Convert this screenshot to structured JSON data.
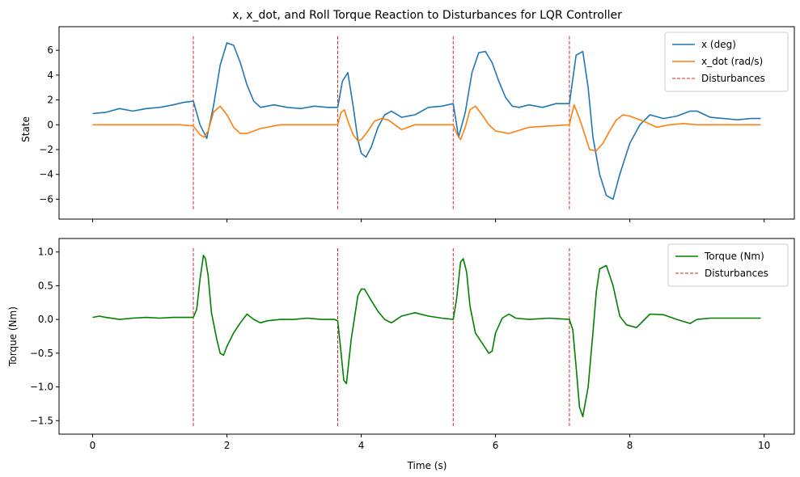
{
  "chart_data": [
    {
      "type": "line",
      "title": "x, x_dot, and Roll Torque Reaction to Disturbances for LQR Controller",
      "xlabel": "",
      "ylabel": "State",
      "xlim": [
        -0.5,
        10.45
      ],
      "ylim": [
        -7.6,
        7.9
      ],
      "xticks": [
        0,
        2,
        4,
        6,
        8,
        10
      ],
      "yticks": [
        -6,
        -4,
        -2,
        0,
        2,
        4,
        6
      ],
      "grid": false,
      "legend": "top-right",
      "disturbances": {
        "name": "Disturbances",
        "color": "#d62728",
        "x": [
          1.5,
          3.65,
          5.37,
          7.1
        ],
        "y_range": [
          -6.8,
          7.2
        ]
      },
      "series": [
        {
          "name": "x (deg)",
          "color": "#1f77b4",
          "x": [
            0,
            0.2,
            0.4,
            0.6,
            0.8,
            1.0,
            1.2,
            1.35,
            1.5,
            1.6,
            1.7,
            1.8,
            1.9,
            2.0,
            2.1,
            2.2,
            2.3,
            2.4,
            2.5,
            2.7,
            2.9,
            3.1,
            3.3,
            3.5,
            3.65,
            3.72,
            3.8,
            3.88,
            3.95,
            4.0,
            4.07,
            4.15,
            4.25,
            4.35,
            4.45,
            4.6,
            4.8,
            5.0,
            5.2,
            5.37,
            5.45,
            5.55,
            5.65,
            5.75,
            5.85,
            5.95,
            6.05,
            6.15,
            6.25,
            6.35,
            6.5,
            6.7,
            6.9,
            7.1,
            7.2,
            7.3,
            7.38,
            7.45,
            7.55,
            7.65,
            7.75,
            7.85,
            8.0,
            8.15,
            8.3,
            8.5,
            8.7,
            8.9,
            9.0,
            9.2,
            9.4,
            9.6,
            9.8,
            9.95
          ],
          "y": [
            0.9,
            1.0,
            1.3,
            1.1,
            1.3,
            1.4,
            1.6,
            1.8,
            1.9,
            0.0,
            -1.1,
            1.5,
            4.8,
            6.6,
            6.4,
            5.0,
            3.2,
            1.9,
            1.4,
            1.6,
            1.4,
            1.3,
            1.5,
            1.4,
            1.4,
            3.5,
            4.2,
            1.5,
            -1.2,
            -2.3,
            -2.6,
            -1.8,
            -0.2,
            0.8,
            1.1,
            0.6,
            0.8,
            1.4,
            1.5,
            1.7,
            -1.0,
            1.0,
            4.2,
            5.8,
            5.9,
            5.0,
            3.5,
            2.2,
            1.5,
            1.4,
            1.6,
            1.4,
            1.7,
            1.7,
            5.6,
            5.9,
            3.0,
            -1.0,
            -4.0,
            -5.7,
            -6.0,
            -4.0,
            -1.5,
            0.0,
            0.8,
            0.5,
            0.7,
            1.1,
            1.1,
            0.6,
            0.5,
            0.4,
            0.5,
            0.5
          ]
        },
        {
          "name": "x_dot (rad/s)",
          "color": "#ff7f0e",
          "x": [
            0,
            0.5,
            1.0,
            1.3,
            1.5,
            1.6,
            1.66,
            1.72,
            1.8,
            1.9,
            2.0,
            2.1,
            2.2,
            2.3,
            2.5,
            2.8,
            3.0,
            3.3,
            3.65,
            3.7,
            3.75,
            3.8,
            3.88,
            3.95,
            4.0,
            4.1,
            4.2,
            4.3,
            4.4,
            4.5,
            4.6,
            4.8,
            5.0,
            5.37,
            5.43,
            5.48,
            5.55,
            5.62,
            5.7,
            5.8,
            5.9,
            6.0,
            6.2,
            6.5,
            7.1,
            7.17,
            7.25,
            7.33,
            7.4,
            7.5,
            7.6,
            7.7,
            7.8,
            7.9,
            8.0,
            8.2,
            8.4,
            8.6,
            8.8,
            9.0,
            9.5,
            9.95
          ],
          "y": [
            0.0,
            0.0,
            0.0,
            0.0,
            -0.1,
            -0.8,
            -1.0,
            -0.5,
            1.0,
            1.5,
            0.8,
            -0.2,
            -0.7,
            -0.7,
            -0.3,
            0.0,
            0.0,
            0.0,
            0.0,
            1.0,
            1.2,
            0.3,
            -0.8,
            -1.3,
            -1.2,
            -0.5,
            0.3,
            0.5,
            0.4,
            0.0,
            -0.4,
            0.0,
            0.0,
            0.0,
            -0.8,
            -1.2,
            -0.2,
            1.2,
            1.5,
            0.8,
            0.0,
            -0.5,
            -0.7,
            -0.2,
            0.0,
            1.6,
            0.5,
            -0.8,
            -2.0,
            -2.1,
            -1.5,
            -0.5,
            0.4,
            0.8,
            0.7,
            0.3,
            -0.2,
            0.0,
            0.1,
            0.0,
            0.0,
            0.0
          ]
        }
      ]
    },
    {
      "type": "line",
      "title": "",
      "xlabel": "Time (s)",
      "ylabel": "Torque (Nm)",
      "xlim": [
        -0.5,
        10.45
      ],
      "ylim": [
        -1.7,
        1.2
      ],
      "xticks": [
        0,
        2,
        4,
        6,
        8,
        10
      ],
      "yticks": [
        -1.5,
        -1.0,
        -0.5,
        0.0,
        0.5,
        1.0
      ],
      "ytick_labels": [
        "−1.5",
        "−1.0",
        "−0.5",
        "0.0",
        "0.5",
        "1.0"
      ],
      "xtick_labels": [
        "0",
        "2",
        "4",
        "6",
        "8",
        "10"
      ],
      "grid": false,
      "legend": "top-right",
      "disturbances": {
        "name": "Disturbances",
        "color": "#d62728",
        "x": [
          1.5,
          3.65,
          5.37,
          7.1
        ],
        "y_range": [
          -1.58,
          1.07
        ]
      },
      "series": [
        {
          "name": "Torque (Nm)",
          "color": "#008000",
          "x": [
            0,
            0.1,
            0.2,
            0.4,
            0.6,
            0.8,
            1.0,
            1.2,
            1.4,
            1.5,
            1.55,
            1.6,
            1.65,
            1.68,
            1.72,
            1.77,
            1.85,
            1.9,
            1.95,
            2.0,
            2.1,
            2.2,
            2.3,
            2.4,
            2.5,
            2.6,
            2.8,
            3.0,
            3.2,
            3.4,
            3.6,
            3.65,
            3.7,
            3.74,
            3.78,
            3.85,
            3.95,
            4.0,
            4.05,
            4.15,
            4.25,
            4.35,
            4.45,
            4.6,
            4.8,
            5.0,
            5.2,
            5.37,
            5.42,
            5.48,
            5.52,
            5.57,
            5.62,
            5.7,
            5.8,
            5.9,
            5.95,
            6.0,
            6.1,
            6.2,
            6.3,
            6.5,
            6.8,
            7.1,
            7.15,
            7.2,
            7.25,
            7.3,
            7.38,
            7.45,
            7.5,
            7.55,
            7.65,
            7.75,
            7.85,
            7.95,
            8.1,
            8.3,
            8.5,
            8.7,
            8.9,
            9.0,
            9.2,
            9.5,
            9.8,
            9.95
          ],
          "y": [
            0.03,
            0.05,
            0.03,
            0.0,
            0.02,
            0.03,
            0.02,
            0.03,
            0.03,
            0.03,
            0.15,
            0.6,
            0.95,
            0.9,
            0.65,
            0.1,
            -0.3,
            -0.5,
            -0.53,
            -0.4,
            -0.2,
            -0.05,
            0.08,
            0.0,
            -0.05,
            -0.02,
            0.0,
            0.0,
            0.02,
            0.0,
            0.0,
            -0.02,
            -0.5,
            -0.9,
            -0.95,
            -0.3,
            0.35,
            0.45,
            0.45,
            0.28,
            0.12,
            0.0,
            -0.05,
            0.05,
            0.1,
            0.05,
            0.02,
            0.0,
            0.3,
            0.85,
            0.9,
            0.7,
            0.2,
            -0.2,
            -0.35,
            -0.5,
            -0.47,
            -0.2,
            0.02,
            0.08,
            0.02,
            0.0,
            0.02,
            0.0,
            -0.15,
            -0.7,
            -1.3,
            -1.44,
            -1.0,
            -0.2,
            0.4,
            0.75,
            0.8,
            0.5,
            0.05,
            -0.08,
            -0.12,
            0.08,
            0.07,
            0.0,
            -0.06,
            0.0,
            0.02,
            0.02,
            0.02,
            0.02
          ]
        }
      ]
    }
  ]
}
